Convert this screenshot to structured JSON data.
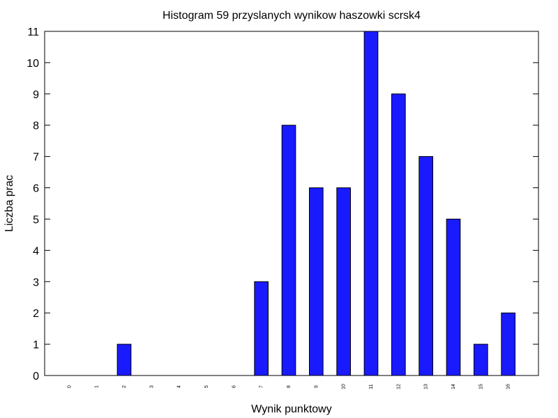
{
  "chart_data": {
    "type": "bar",
    "title": "Histogram 59 przyslanych wynikow haszowki scrsk4",
    "xlabel": "Wynik punktowy",
    "ylabel": "Liczba prac",
    "categories": [
      "0",
      "1",
      "2",
      "3",
      "4",
      "5",
      "6",
      "7",
      "8",
      "9",
      "10",
      "11",
      "12",
      "13",
      "14",
      "15",
      "16"
    ],
    "values": [
      0,
      0,
      1,
      0,
      0,
      0,
      0,
      3,
      8,
      6,
      6,
      11,
      9,
      7,
      5,
      1,
      2
    ],
    "ylim": [
      0,
      11
    ],
    "yticks": [
      "0",
      "1",
      "2",
      "3",
      "4",
      "5",
      "6",
      "7",
      "8",
      "9",
      "10",
      "11"
    ],
    "grid": false,
    "legend": "none",
    "colors": {
      "bar": "#1a1aff",
      "edge": "#000000"
    }
  }
}
